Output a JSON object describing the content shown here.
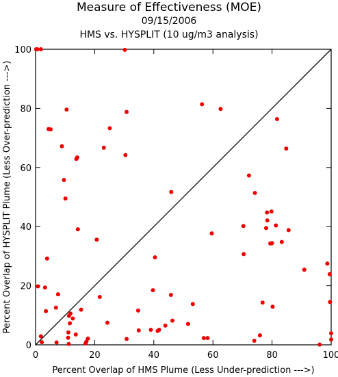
{
  "chart_data": {
    "type": "scatter",
    "title": "Measure of Effectiveness (MOE)",
    "subtitle": "09/15/2006",
    "subtitle2": "HMS vs. HYSPLIT  (10 ug/m3 analysis)",
    "xlabel": "Percent Overlap of HMS Plume (Less Under-prediction --->)",
    "ylabel": "Percent Overlap of HYSPLIT Plume (Less Over-prediction --->)",
    "xlim": [
      0,
      100
    ],
    "ylim": [
      0,
      100
    ],
    "x_ticks": [
      0,
      20,
      40,
      60,
      80,
      100
    ],
    "y_ticks": [
      0,
      20,
      40,
      60,
      80,
      100
    ],
    "grid": false,
    "reference_line": "diagonal y = x",
    "marker_color": "#ee0000",
    "points": [
      [
        0.2,
        100
      ],
      [
        0.6,
        100
      ],
      [
        1.8,
        100
      ],
      [
        30.2,
        99.8
      ],
      [
        56.3,
        81.4
      ],
      [
        62.6,
        79.8
      ],
      [
        10.5,
        79.6
      ],
      [
        30.8,
        78.8
      ],
      [
        81.7,
        76.4
      ],
      [
        4.4,
        73.0
      ],
      [
        5.1,
        72.9
      ],
      [
        25.1,
        73.3
      ],
      [
        8.9,
        67.2
      ],
      [
        23.1,
        66.7
      ],
      [
        84.8,
        66.4
      ],
      [
        30.4,
        64.2
      ],
      [
        13.8,
        62.9
      ],
      [
        14.1,
        63.4
      ],
      [
        9.6,
        55.8
      ],
      [
        72.2,
        57.3
      ],
      [
        10.1,
        49.5
      ],
      [
        45.9,
        51.7
      ],
      [
        74.2,
        51.4
      ],
      [
        78.3,
        44.8
      ],
      [
        79.8,
        45.1
      ],
      [
        78.4,
        42.1
      ],
      [
        81.3,
        40.4
      ],
      [
        70.3,
        40.2
      ],
      [
        78.0,
        39.5
      ],
      [
        85.6,
        38.8
      ],
      [
        14.3,
        39.1
      ],
      [
        59.6,
        37.7
      ],
      [
        20.7,
        35.6
      ],
      [
        79.4,
        34.3
      ],
      [
        80.0,
        34.4
      ],
      [
        83.3,
        34.8
      ],
      [
        70.4,
        30.7
      ],
      [
        3.9,
        29.2
      ],
      [
        40.4,
        29.6
      ],
      [
        98.7,
        27.5
      ],
      [
        90.9,
        25.4
      ],
      [
        99.5,
        23.9
      ],
      [
        0.8,
        19.8
      ],
      [
        3.2,
        19.4
      ],
      [
        39.7,
        18.5
      ],
      [
        7.6,
        17.1
      ],
      [
        45.8,
        16.9
      ],
      [
        21.7,
        16.2
      ],
      [
        76.8,
        14.3
      ],
      [
        99.6,
        14.5
      ],
      [
        53.2,
        13.8
      ],
      [
        6.9,
        12.6
      ],
      [
        80.2,
        12.9
      ],
      [
        15.4,
        11.9
      ],
      [
        3.5,
        11.4
      ],
      [
        34.7,
        11.6
      ],
      [
        11.8,
        10.6
      ],
      [
        11.3,
        9.8
      ],
      [
        12.6,
        8.9
      ],
      [
        46.3,
        8.2
      ],
      [
        24.3,
        7.5
      ],
      [
        11.6,
        7.3
      ],
      [
        51.6,
        7.1
      ],
      [
        43.9,
        6.5
      ],
      [
        34.9,
        4.9
      ],
      [
        39.0,
        5.1
      ],
      [
        41.3,
        4.7
      ],
      [
        41.8,
        5.1
      ],
      [
        11.1,
        4.2
      ],
      [
        13.6,
        3.5
      ],
      [
        100,
        3.9
      ],
      [
        75.9,
        3.2
      ],
      [
        1.8,
        2.9
      ],
      [
        11.0,
        2.4
      ],
      [
        17.7,
        2.1
      ],
      [
        30.8,
        2.0
      ],
      [
        56.9,
        2.3
      ],
      [
        58.2,
        2.3
      ],
      [
        100,
        1.8
      ],
      [
        74.0,
        1.4
      ],
      [
        2.1,
        0.9
      ],
      [
        7.1,
        0.8
      ],
      [
        17.2,
        1.1
      ],
      [
        16.9,
        0.5
      ],
      [
        11.2,
        0.3
      ],
      [
        96.1,
        0.1
      ]
    ]
  }
}
